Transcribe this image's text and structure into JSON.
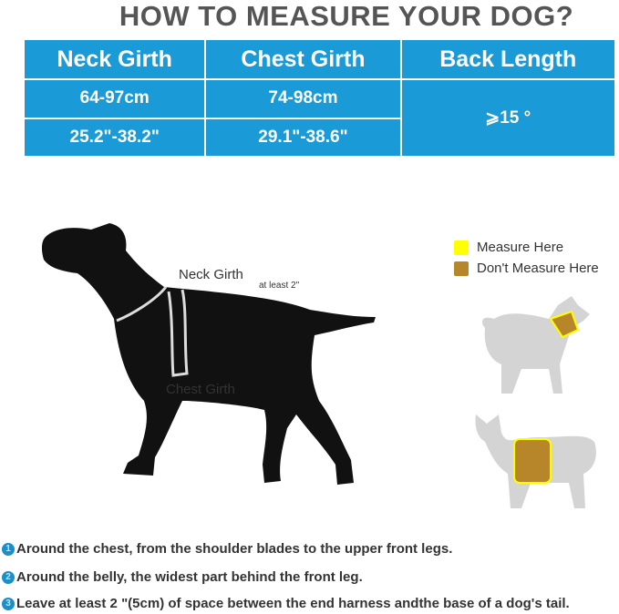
{
  "title": "HOW TO MEASURE YOUR DOG?",
  "table": {
    "headers": [
      "Neck Girth",
      "Chest Girth",
      "Back Length"
    ],
    "rows": [
      [
        "64-97cm",
        "74-98cm"
      ],
      [
        "25.2\"-38.2\"",
        "29.1\"-38.6\""
      ]
    ],
    "back_length": "⩾15 °"
  },
  "diagram": {
    "neck_label": "Neck Girth",
    "gap_label": "at least 2\"",
    "chest_label": "Chest Girth"
  },
  "legend": [
    {
      "label": "Measure Here",
      "color": "#ffff00"
    },
    {
      "label": "Don't Measure Here",
      "color": "#b8862a"
    }
  ],
  "steps": [
    {
      "number": "1",
      "text": "Around the chest, from the shoulder blades to the upper front legs."
    },
    {
      "number": "2",
      "text": "Around the belly, the widest part behind the front leg."
    },
    {
      "number": "3",
      "text": "Leave at least 2 \"(5cm) of space between the end harness andthe base of a dog's tail."
    }
  ],
  "colors": {
    "table_bg": "#1a9ad6",
    "dog": "#111111",
    "ghost_dog": "#d4d4d4"
  }
}
